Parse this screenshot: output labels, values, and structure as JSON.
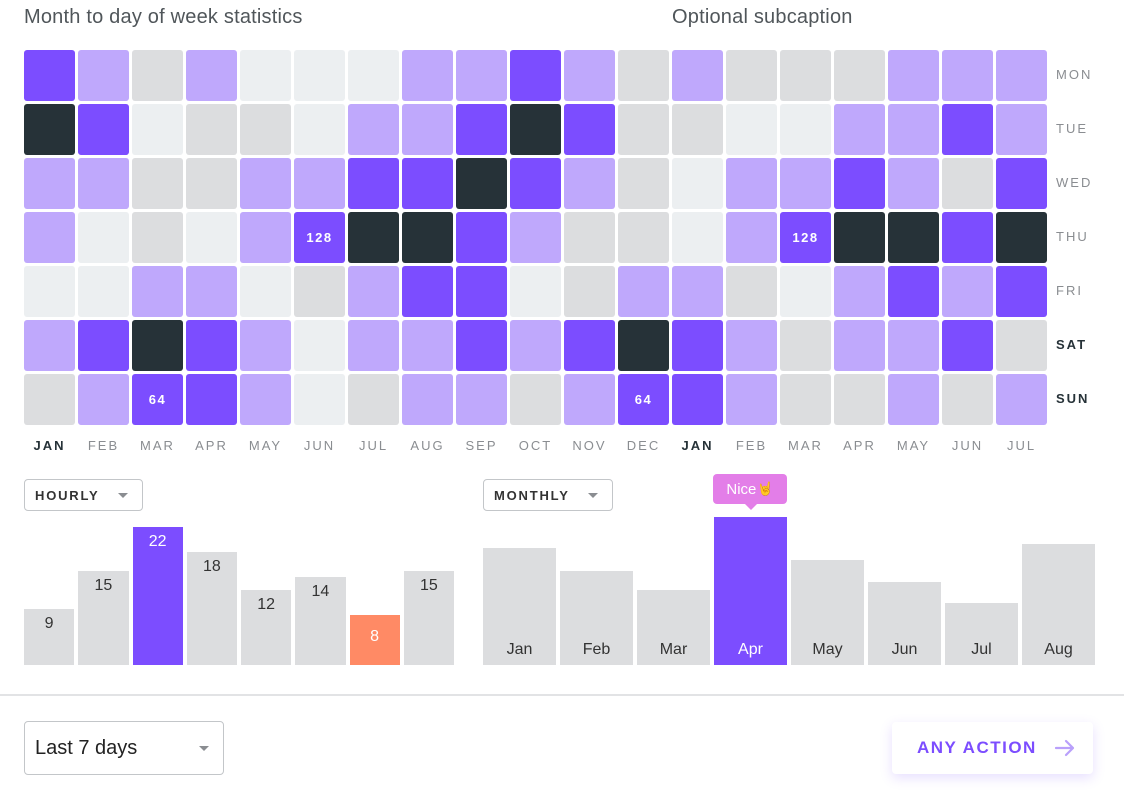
{
  "header": {
    "title": "Month to day of week statistics",
    "subcaption": "Optional subcaption"
  },
  "colors": {
    "level0": "#eceff1",
    "level1": "#dcdddf",
    "level2": "#bfa8fc",
    "level3": "#7c4dff",
    "level4": "#263238",
    "bar_default": "#dcdddf",
    "bar_highlight": "#7c4dff",
    "bar_low": "#ff8a65",
    "tooltip": "#e37ee8",
    "accent": "#7c4dff"
  },
  "chart_data": [
    {
      "type": "heatmap",
      "title": "Month to day of week statistics",
      "subtitle": "Optional subcaption",
      "x": [
        "JAN",
        "FEB",
        "MAR",
        "APR",
        "MAY",
        "JUN",
        "JUL",
        "AUG",
        "SEP",
        "OCT",
        "NOV",
        "DEC",
        "JAN",
        "FEB",
        "MAR",
        "APR",
        "MAY",
        "JUN",
        "JUL"
      ],
      "x_emphasized": [
        0,
        12
      ],
      "y": [
        "MON",
        "TUE",
        "WED",
        "THU",
        "FRI",
        "SAT",
        "SUN"
      ],
      "y_emphasized": [
        5,
        6
      ],
      "levels": [
        [
          3,
          2,
          1,
          2,
          0,
          0,
          0,
          2,
          2,
          3,
          2,
          1,
          2,
          1,
          1,
          1,
          2,
          2,
          2
        ],
        [
          4,
          3,
          0,
          1,
          1,
          0,
          2,
          2,
          3,
          4,
          3,
          1,
          1,
          0,
          0,
          2,
          2,
          3,
          2
        ],
        [
          2,
          2,
          1,
          1,
          2,
          2,
          3,
          3,
          4,
          3,
          2,
          1,
          0,
          2,
          2,
          3,
          2,
          1,
          3
        ],
        [
          2,
          0,
          1,
          0,
          2,
          3,
          4,
          4,
          3,
          2,
          1,
          1,
          0,
          2,
          3,
          4,
          4,
          3,
          4
        ],
        [
          0,
          0,
          2,
          2,
          0,
          1,
          2,
          3,
          3,
          0,
          1,
          2,
          2,
          1,
          0,
          2,
          3,
          2,
          3
        ],
        [
          2,
          3,
          4,
          3,
          2,
          0,
          2,
          2,
          3,
          2,
          3,
          4,
          3,
          2,
          1,
          2,
          2,
          3,
          1
        ],
        [
          1,
          2,
          3,
          3,
          2,
          0,
          1,
          2,
          2,
          1,
          2,
          3,
          3,
          2,
          1,
          1,
          2,
          1,
          2
        ]
      ],
      "annotations": [
        {
          "row": 3,
          "col": 5,
          "text": "128"
        },
        {
          "row": 3,
          "col": 14,
          "text": "128"
        },
        {
          "row": 6,
          "col": 2,
          "text": "64"
        },
        {
          "row": 6,
          "col": 11,
          "text": "64"
        }
      ]
    },
    {
      "type": "bar",
      "title": "",
      "selector": "HOURLY",
      "categories": [
        "",
        "",
        "",
        "",
        "",
        "",
        "",
        ""
      ],
      "values": [
        9,
        15,
        22,
        18,
        12,
        14,
        8,
        15
      ],
      "highlight_index": 2,
      "low_index": 6,
      "ylim": [
        0,
        26
      ],
      "grid": false
    },
    {
      "type": "bar",
      "title": "",
      "selector": "MONTHLY",
      "categories": [
        "Jan",
        "Feb",
        "Mar",
        "Apr",
        "May",
        "Jun",
        "Jul",
        "Aug"
      ],
      "values": [
        18.7,
        15,
        12,
        23.6,
        16.7,
        13.2,
        9.9,
        19.3
      ],
      "highlight_index": 3,
      "tooltip": {
        "index": 3,
        "text": "Nice",
        "icon": "rock-on-hand-icon"
      },
      "ylim": [
        0,
        26
      ],
      "grid": false
    }
  ],
  "footer": {
    "range_select": {
      "value": "Last 7 days"
    },
    "action_button": {
      "label": "ANY ACTION",
      "icon": "arrow-right-icon"
    }
  }
}
